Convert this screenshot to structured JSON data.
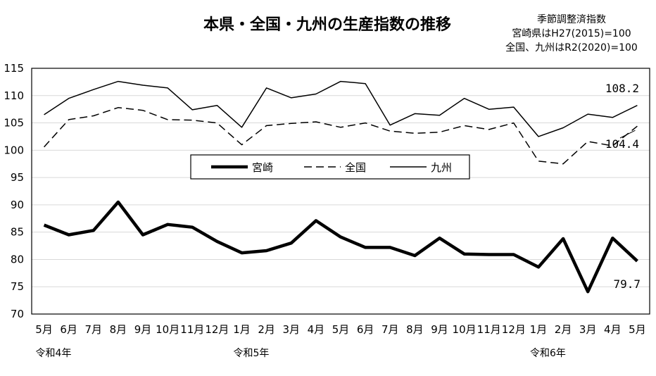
{
  "chart_data": {
    "type": "line",
    "title": "本県・全国・九州の生産指数の推移",
    "notes": [
      "季節調整済指数",
      "宮崎県はH27(2015)=100",
      "全国、九州はR2(2020)=100"
    ],
    "categories": [
      "5月",
      "6月",
      "7月",
      "8月",
      "9月",
      "10月",
      "11月",
      "12月",
      "1月",
      "2月",
      "3月",
      "4月",
      "5月",
      "6月",
      "7月",
      "8月",
      "9月",
      "10月",
      "11月",
      "12月",
      "1月",
      "2月",
      "3月",
      "4月",
      "5月"
    ],
    "era_labels": [
      {
        "index": 0,
        "label": "令和4年"
      },
      {
        "index": 8,
        "label": "令和5年"
      },
      {
        "index": 20,
        "label": "令和6年"
      }
    ],
    "ylim": [
      70,
      115
    ],
    "yticks": [
      70,
      75,
      80,
      85,
      90,
      95,
      100,
      105,
      110,
      115
    ],
    "grid": true,
    "legend_position": "center",
    "series": [
      {
        "name": "宮崎",
        "style": "thick-solid",
        "values": [
          86.3,
          84.5,
          85.3,
          90.5,
          84.5,
          86.4,
          85.9,
          83.3,
          81.2,
          81.6,
          83.0,
          87.1,
          84.1,
          82.2,
          82.2,
          80.7,
          83.9,
          81.0,
          80.9,
          80.9,
          78.6,
          83.8,
          74.1,
          83.9,
          79.7
        ],
        "end_label": "79.7"
      },
      {
        "name": "全国",
        "style": "dashed",
        "values": [
          100.6,
          105.6,
          106.3,
          107.8,
          107.3,
          105.6,
          105.5,
          105.0,
          101.0,
          104.5,
          104.9,
          105.2,
          104.2,
          105.0,
          103.5,
          103.1,
          103.3,
          104.5,
          103.8,
          105.0,
          98.0,
          97.5,
          101.6,
          100.8,
          104.4
        ],
        "end_label": "104.4"
      },
      {
        "name": "九州",
        "style": "thin-solid",
        "values": [
          106.5,
          109.5,
          111.1,
          112.6,
          111.9,
          111.4,
          107.4,
          108.2,
          104.2,
          111.4,
          109.6,
          110.3,
          112.6,
          112.2,
          104.6,
          106.7,
          106.4,
          109.5,
          107.5,
          107.9,
          102.5,
          104.1,
          106.6,
          106.0,
          108.2
        ],
        "end_label": "108.2"
      }
    ]
  }
}
